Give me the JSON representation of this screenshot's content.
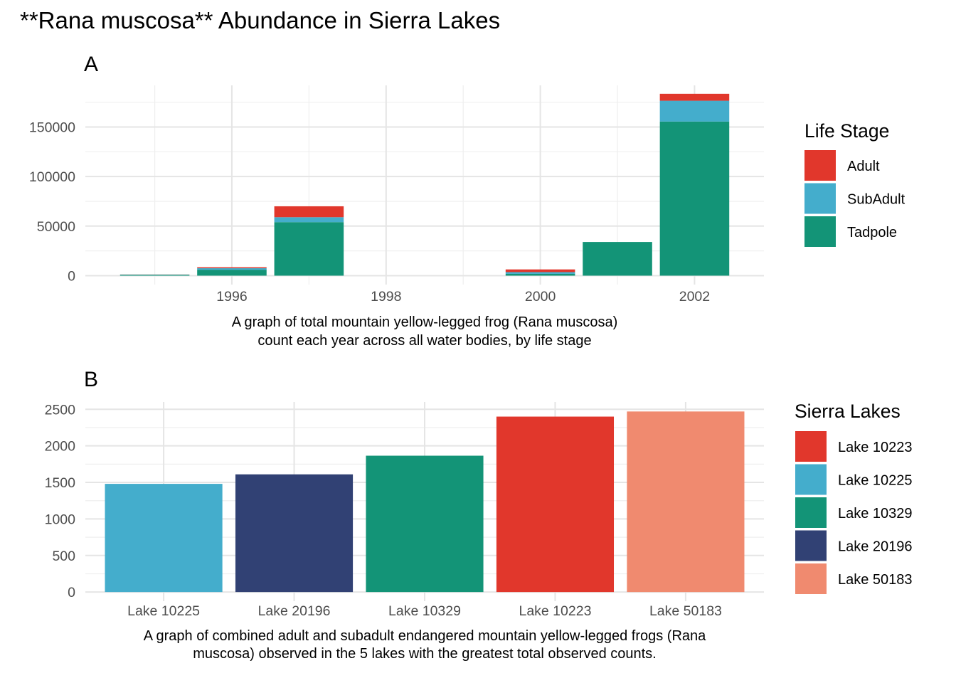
{
  "title": "**Rana muscosa** Abundance in Sierra Lakes",
  "colors": {
    "Adult": "#E1372C",
    "SubAdult": "#44ADCC",
    "Tadpole": "#139477",
    "Lake 10223": "#E1372C",
    "Lake 10225": "#44ADCC",
    "Lake 10329": "#139477",
    "Lake 20196": "#314174",
    "Lake 50183": "#F08A6F"
  },
  "chart_data": [
    {
      "panel": "A",
      "type": "bar",
      "stacked": true,
      "caption": [
        "A graph of total mountain yellow-legged frog (Rana muscosa)",
        "count each year across all water bodies, by life stage"
      ],
      "x": [
        1995,
        1996,
        1997,
        2000,
        2001,
        2002
      ],
      "x_ticks": [
        "1996",
        "1998",
        "2000",
        "2002"
      ],
      "y_ticks": [
        "0",
        "50000",
        "100000",
        "150000"
      ],
      "xlim": [
        1994.1,
        2002.9
      ],
      "ylim": [
        -9000,
        192000
      ],
      "series": [
        {
          "name": "Tadpole",
          "values": [
            900,
            6000,
            54000,
            1800,
            34000,
            155500
          ]
        },
        {
          "name": "SubAdult",
          "values": [
            200,
            1500,
            5000,
            1800,
            0,
            21000
          ]
        },
        {
          "name": "Adult",
          "values": [
            100,
            1000,
            11000,
            2700,
            0,
            7000
          ]
        }
      ],
      "legend": {
        "title": "Life Stage",
        "entries": [
          "Adult",
          "SubAdult",
          "Tadpole"
        ],
        "position": "right"
      },
      "grid": true
    },
    {
      "panel": "B",
      "type": "bar",
      "caption": [
        "A graph of combined adult and subadult endangered mountain yellow-legged frogs (Rana",
        "muscosa) observed in the 5 lakes with the greatest total observed counts."
      ],
      "categories": [
        "Lake 10225",
        "Lake 20196",
        "Lake 10329",
        "Lake 10223",
        "Lake 50183"
      ],
      "values": [
        1480,
        1610,
        1865,
        2400,
        2470
      ],
      "y_ticks": [
        "0",
        "500",
        "1000",
        "1500",
        "2000",
        "2500"
      ],
      "ylim": [
        -125,
        2600
      ],
      "legend": {
        "title": "Sierra Lakes",
        "entries": [
          "Lake 10223",
          "Lake 10225",
          "Lake 10329",
          "Lake 20196",
          "Lake 50183"
        ],
        "position": "right"
      },
      "grid": true
    }
  ]
}
